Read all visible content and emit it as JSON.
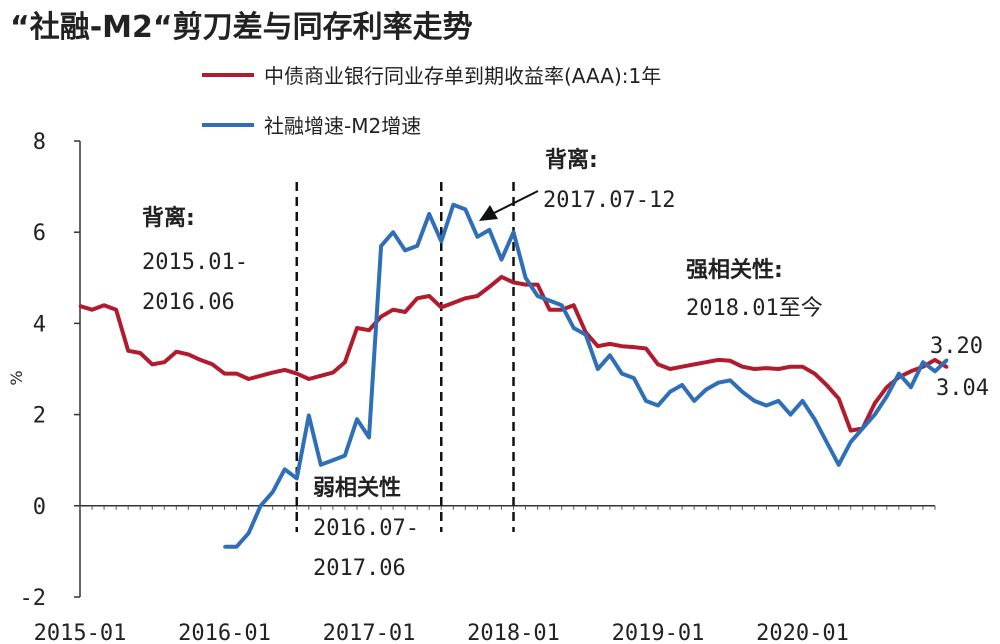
{
  "chart_data": {
    "type": "line",
    "title": "“社融-M2“剪刀差与同存利率走势",
    "ylabel": "%",
    "ylim": [
      -2,
      8
    ],
    "yticks": [
      "-2",
      "0",
      "2",
      "4",
      "6",
      "8"
    ],
    "xticks": [
      "2015-01",
      "2016-01",
      "2017-01",
      "2018-01",
      "2019-01",
      "2020-01"
    ],
    "x_start": "2015-01",
    "x_end": "2020-12",
    "grid": false,
    "legend_position": "top",
    "series": [
      {
        "name": "中债商业银行同业存单到期收益率(AAA):1年",
        "color": "#b01c2e",
        "start": "2015-01",
        "values": [
          4.38,
          4.3,
          4.4,
          4.3,
          3.4,
          3.35,
          3.1,
          3.15,
          3.38,
          3.32,
          3.2,
          3.1,
          2.9,
          2.9,
          2.78,
          2.85,
          2.92,
          2.98,
          2.9,
          2.78,
          2.85,
          2.92,
          3.15,
          3.9,
          3.85,
          4.15,
          4.3,
          4.25,
          4.55,
          4.6,
          4.35,
          4.45,
          4.55,
          4.6,
          4.8,
          5.02,
          4.9,
          4.85,
          4.85,
          4.3,
          4.3,
          4.4,
          3.8,
          3.5,
          3.55,
          3.5,
          3.48,
          3.45,
          3.1,
          3.0,
          3.05,
          3.1,
          3.15,
          3.2,
          3.18,
          3.05,
          3.0,
          3.02,
          3.0,
          3.05,
          3.05,
          2.9,
          2.65,
          2.35,
          1.65,
          1.7,
          2.25,
          2.6,
          2.82,
          2.95,
          3.05,
          3.2,
          3.04
        ]
      },
      {
        "name": "社融增速-M2增速",
        "color": "#2e6fb7",
        "start": "2016-01",
        "values": [
          -0.9,
          -0.9,
          -0.6,
          0.0,
          0.3,
          0.8,
          0.6,
          1.98,
          0.9,
          1.0,
          1.1,
          1.9,
          1.5,
          5.7,
          6.0,
          5.6,
          5.7,
          6.4,
          5.8,
          6.6,
          6.5,
          5.9,
          6.05,
          5.4,
          6.0,
          5.0,
          4.6,
          4.5,
          4.4,
          3.9,
          3.75,
          3.0,
          3.3,
          2.9,
          2.8,
          2.3,
          2.2,
          2.5,
          2.65,
          2.3,
          2.55,
          2.7,
          2.75,
          2.5,
          2.3,
          2.2,
          2.3,
          2.0,
          2.3,
          1.9,
          1.4,
          0.9,
          1.4,
          1.7,
          2.0,
          2.4,
          2.9,
          2.6,
          3.15,
          2.95,
          3.2
        ]
      }
    ],
    "annotations": [
      {
        "lines": [
          "背离:",
          "2015.01-",
          "2016.06"
        ]
      },
      {
        "lines": [
          "背离:",
          "2017.07-12"
        ]
      },
      {
        "lines": [
          "弱相关性",
          "2016.07-",
          "2017.06"
        ]
      },
      {
        "lines": [
          "强相关性:",
          "2018.01至今"
        ]
      }
    ],
    "end_labels": [
      "3.20",
      "3.04"
    ],
    "dividers": [
      "2016-07",
      "2017-07",
      "2018-01"
    ]
  }
}
